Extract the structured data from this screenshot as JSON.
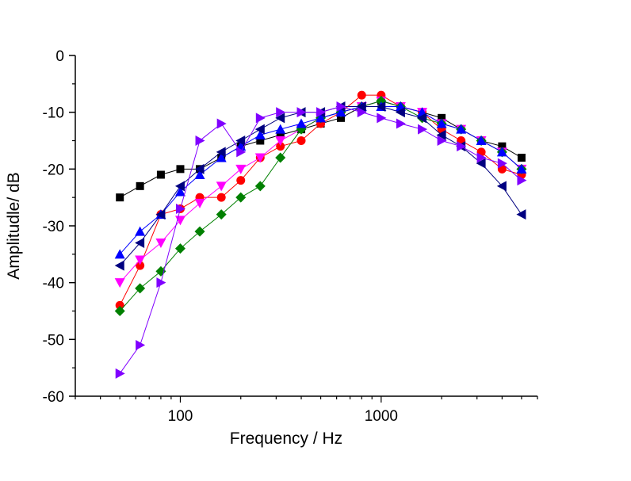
{
  "chart_data": {
    "type": "line",
    "title": "",
    "xlabel": "Frequency / Hz",
    "ylabel": "Amplitudle/ dB",
    "xscale": "log",
    "xlim": [
      30,
      6000
    ],
    "ylim": [
      -60,
      0
    ],
    "x_ticks": [
      {
        "value": 100,
        "label": "100"
      },
      {
        "value": 1000,
        "label": "1000"
      }
    ],
    "y_ticks": [
      {
        "value": 0,
        "label": "0"
      },
      {
        "value": -10,
        "label": "-10"
      },
      {
        "value": -20,
        "label": "-20"
      },
      {
        "value": -30,
        "label": "-30"
      },
      {
        "value": -40,
        "label": "-40"
      },
      {
        "value": -50,
        "label": "-50"
      },
      {
        "value": -60,
        "label": "-60"
      }
    ],
    "x": [
      50,
      63,
      80,
      100,
      125,
      160,
      200,
      250,
      315,
      400,
      500,
      630,
      800,
      1000,
      1250,
      1600,
      2000,
      2500,
      3150,
      4000,
      5000
    ],
    "series": [
      {
        "name": "square",
        "color": "#000000",
        "marker": "square",
        "values": [
          -25,
          -23,
          -21,
          -20,
          -20,
          -18,
          -16,
          -15,
          -14,
          -13,
          -12,
          -11,
          -9,
          -8,
          -9,
          -10,
          -11,
          -13,
          -15,
          -16,
          -18
        ]
      },
      {
        "name": "circle",
        "color": "#ff0000",
        "marker": "circle",
        "values": [
          -44,
          -37,
          -28,
          -27,
          -25,
          -25,
          -22,
          -18,
          -16,
          -15,
          -12,
          -10,
          -7,
          -7,
          -9,
          -10,
          -13,
          -15,
          -17,
          -20,
          -21
        ]
      },
      {
        "name": "triangle-down",
        "color": "#ff00ff",
        "marker": "tri-down",
        "values": [
          -40,
          -36,
          -33,
          -29,
          -26,
          -23,
          -20,
          -18,
          -15,
          -13,
          -11,
          -10,
          -9,
          -8,
          -9,
          -10,
          -12,
          -13,
          -15,
          -17,
          -20
        ]
      },
      {
        "name": "diamond",
        "color": "#008000",
        "marker": "diamond",
        "values": [
          -45,
          -41,
          -38,
          -34,
          -31,
          -28,
          -25,
          -23,
          -18,
          -13,
          -11,
          -10,
          -9,
          -8,
          -9,
          -11,
          -12,
          -13,
          -15,
          -17,
          -20
        ]
      },
      {
        "name": "triangle-up",
        "color": "#0000ff",
        "marker": "tri-up",
        "values": [
          -35,
          -31,
          -28,
          -24,
          -21,
          -18,
          -16,
          -14,
          -13,
          -12,
          -11,
          -10,
          -9,
          -9,
          -9,
          -10,
          -12,
          -13,
          -15,
          -17,
          -20
        ]
      },
      {
        "name": "triangle-left",
        "color": "#000080",
        "marker": "tri-left",
        "values": [
          -37,
          -33,
          -28,
          -23,
          -20,
          -17,
          -15,
          -13,
          -11,
          -10,
          -10,
          -9,
          -9,
          -9,
          -10,
          -11,
          -14,
          -16,
          -19,
          -23,
          -28
        ]
      },
      {
        "name": "triangle-right",
        "color": "#8000ff",
        "marker": "tri-right",
        "values": [
          -56,
          -51,
          -40,
          -27,
          -15,
          -12,
          -17,
          -11,
          -10,
          -10,
          -10,
          -9,
          -10,
          -11,
          -12,
          -13,
          -15,
          -16,
          -18,
          -19,
          -22
        ]
      }
    ],
    "grid": false,
    "legend": "none"
  }
}
